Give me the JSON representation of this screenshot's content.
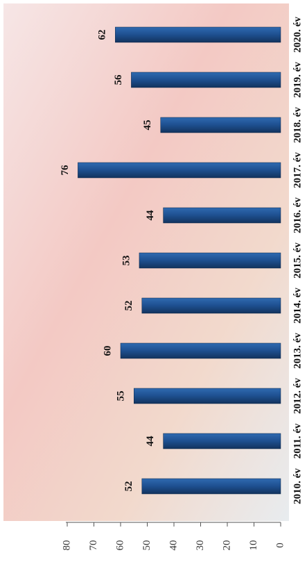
{
  "chart_data": {
    "type": "bar",
    "categories": [
      "2010. év",
      "2011. év",
      "2012. év",
      "2013. év",
      "2014. év",
      "2015. év",
      "2016. év",
      "2017. év",
      "2018. év",
      "2019. év",
      "2020. év"
    ],
    "values": [
      52,
      44,
      55,
      60,
      52,
      53,
      44,
      76,
      45,
      56,
      62
    ],
    "color": "#1e4f8f",
    "ylim": [
      0,
      80
    ],
    "yticks": [
      0,
      10,
      20,
      30,
      40,
      50,
      60,
      70,
      80
    ]
  }
}
